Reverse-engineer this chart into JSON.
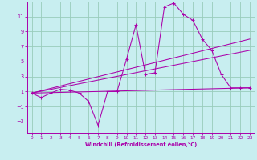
{
  "xlabel": "Windchill (Refroidissement éolien,°C)",
  "bg_color": "#c8eef0",
  "line_color": "#aa00aa",
  "grid_color": "#99ccbb",
  "xlim": [
    -0.5,
    23.5
  ],
  "ylim": [
    -4.5,
    13.0
  ],
  "yticks": [
    -3,
    -1,
    1,
    3,
    5,
    7,
    9,
    11
  ],
  "xticks": [
    0,
    1,
    2,
    3,
    4,
    5,
    6,
    7,
    8,
    9,
    10,
    11,
    12,
    13,
    14,
    15,
    16,
    17,
    18,
    19,
    20,
    21,
    22,
    23
  ],
  "curve_x": [
    0,
    1,
    2,
    3,
    4,
    5,
    6,
    7,
    8,
    9,
    10,
    11,
    12,
    13,
    14,
    15,
    16,
    17,
    18,
    19,
    20,
    21,
    22,
    23
  ],
  "curve_y": [
    0.8,
    0.2,
    0.8,
    1.3,
    1.2,
    0.8,
    -0.3,
    -3.5,
    1.0,
    1.0,
    5.3,
    9.9,
    3.3,
    3.5,
    12.3,
    12.8,
    11.3,
    10.5,
    8.0,
    6.5,
    3.3,
    1.5,
    1.5,
    1.5
  ],
  "line1_x": [
    0,
    23
  ],
  "line1_y": [
    0.8,
    1.5
  ],
  "line2_x": [
    0,
    23
  ],
  "line2_y": [
    0.8,
    8.0
  ],
  "line3_x": [
    0,
    23
  ],
  "line3_y": [
    0.8,
    6.5
  ]
}
